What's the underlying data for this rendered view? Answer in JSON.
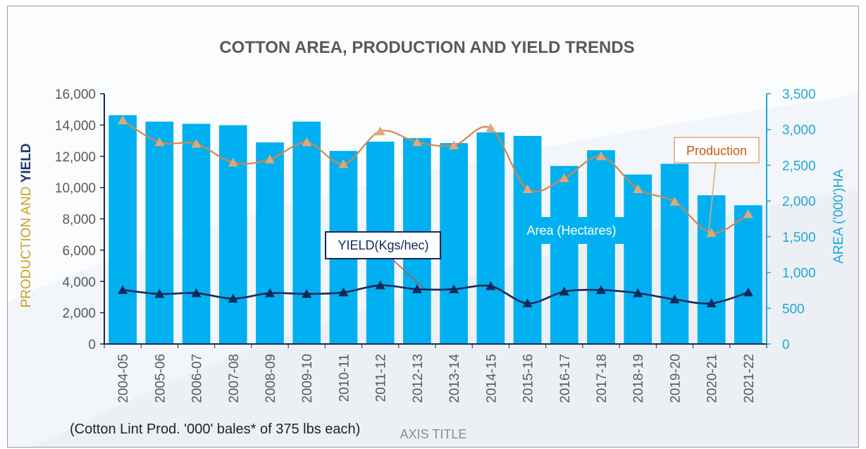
{
  "chart_data": {
    "type": "bar",
    "title": "COTTON AREA, PRODUCTION AND YIELD TRENDS",
    "y_left_label_parts": [
      "PRODUCTION",
      " AND ",
      "YIELD"
    ],
    "y_right_label": "AREA ('000')HA",
    "x_axis_title": "AXIS TITLE",
    "footnote": "(Cotton Lint Prod. '000' bales* of 375 lbs each)",
    "y_left_ticks": [
      "16,000",
      "14,000",
      "12,000",
      "10,000",
      "8,000",
      "6,000",
      "4,000",
      "2,000",
      "0"
    ],
    "y_right_ticks": [
      "3,500",
      "3,000",
      "2,500",
      "2,000",
      "1,500",
      "1,000",
      "500",
      "0"
    ],
    "ylim_left": [
      0,
      16000
    ],
    "ylim_right": [
      0,
      3500
    ],
    "grid": false,
    "categories": [
      "2004-05",
      "2005-06",
      "2006-07",
      "2007-08",
      "2008-09",
      "2009-10",
      "2010-11",
      "2011-12",
      "2012-13",
      "2013-14",
      "2014-15",
      "2015-16",
      "2016-17",
      "2017-18",
      "2018-19",
      "2019-20",
      "2020-21",
      "2021-22"
    ],
    "series": [
      {
        "name": "Area (Hectares)",
        "type": "bar",
        "axis": "right",
        "values": [
          3200,
          3110,
          3080,
          3060,
          2820,
          3110,
          2700,
          2830,
          2880,
          2810,
          2960,
          2910,
          2490,
          2710,
          2370,
          2520,
          2080,
          1940
        ]
      },
      {
        "name": "Production",
        "type": "line",
        "axis": "left",
        "values": [
          14300,
          12900,
          12800,
          11600,
          11800,
          12900,
          11500,
          13600,
          12900,
          12700,
          13800,
          9900,
          10600,
          12000,
          9900,
          9100,
          7100,
          8300
        ]
      },
      {
        "name": "YIELD(Kgs/hec)",
        "type": "line",
        "axis": "left",
        "values": [
          3450,
          3200,
          3250,
          2900,
          3250,
          3200,
          3300,
          3750,
          3500,
          3500,
          3700,
          2600,
          3350,
          3450,
          3250,
          2850,
          2600,
          3300
        ]
      }
    ],
    "colors": {
      "bars": "#00B0F0",
      "production": "#E0A77A",
      "production_line": "#D6864B",
      "production_label": "#C55A11",
      "yield": "#14285A",
      "left_axis": "#595959",
      "right_axis": "#1FA8D8",
      "left_title_production": "#C9A227",
      "left_title_yield": "#1F3864"
    }
  }
}
